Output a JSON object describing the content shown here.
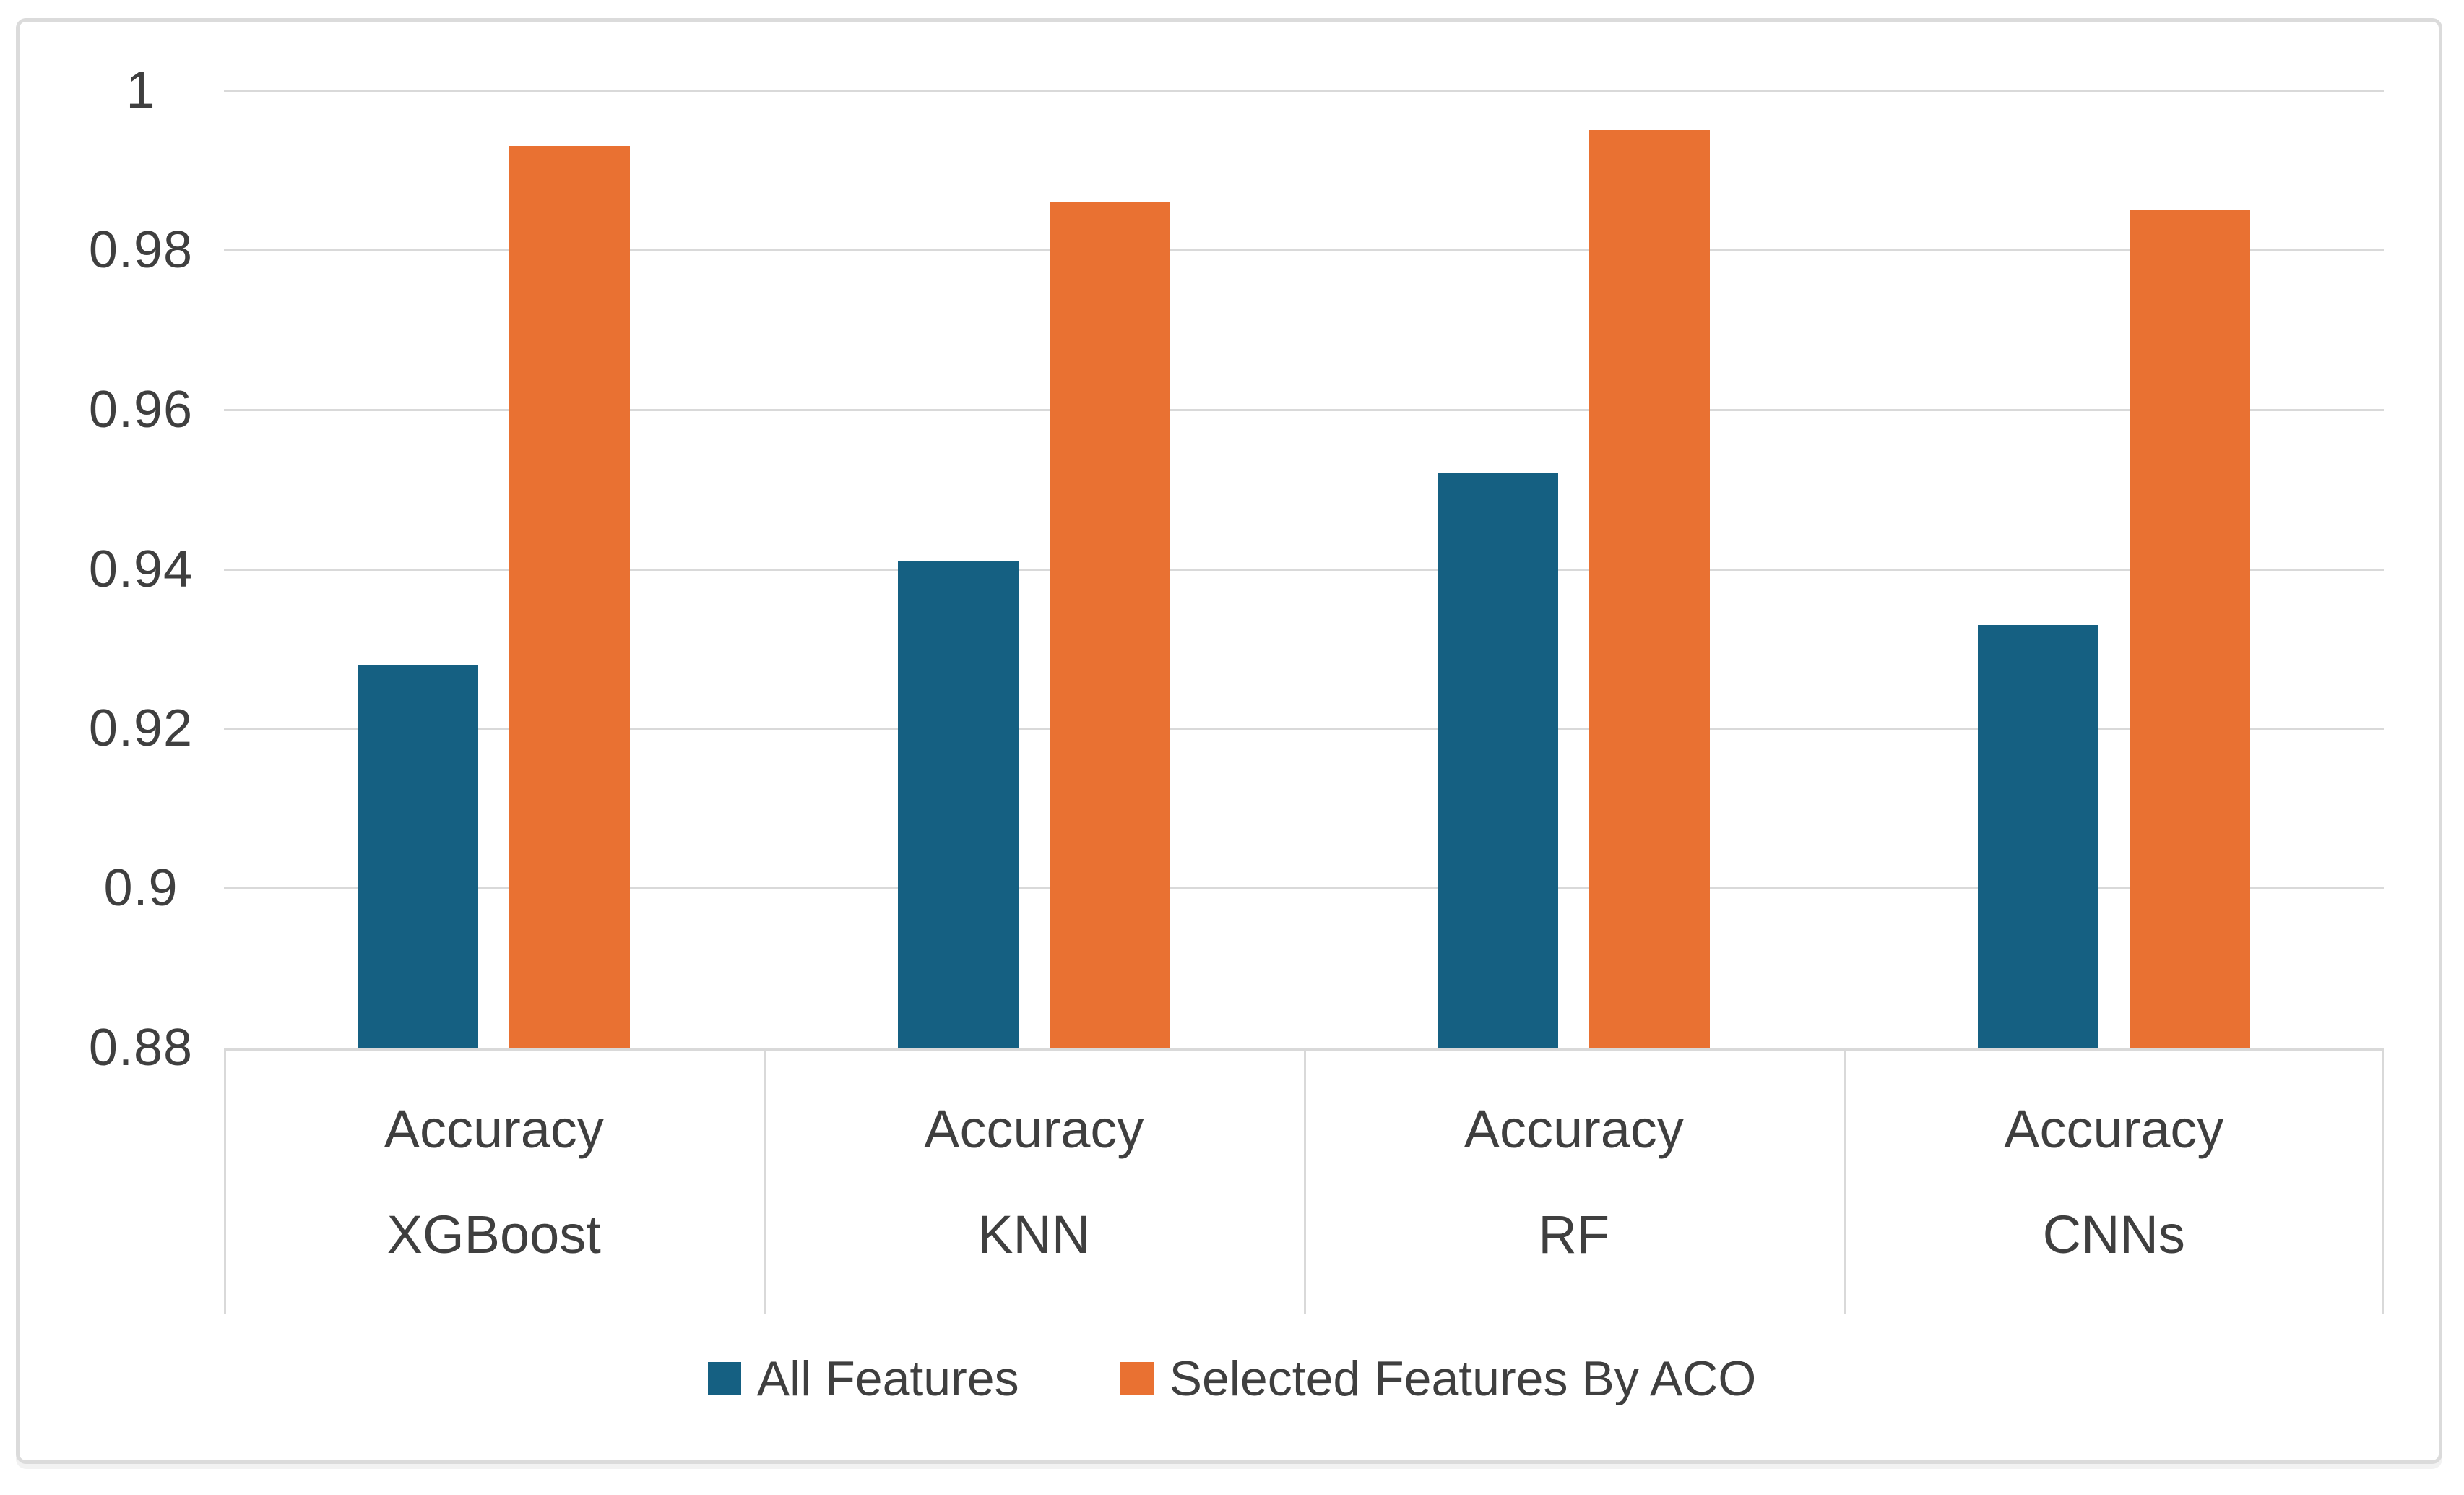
{
  "chart_data": {
    "type": "bar",
    "title": "",
    "xlabel": "",
    "ylabel": "",
    "metric_row_label": "Accuracy",
    "categories": [
      "XGBoost",
      "KNN",
      "RF",
      "CNNs"
    ],
    "series": [
      {
        "name": "All Features",
        "color": "#156082",
        "values": [
          0.928,
          0.941,
          0.952,
          0.933
        ]
      },
      {
        "name": "Selected Features By ACO",
        "color": "#e97132",
        "values": [
          0.993,
          0.986,
          0.995,
          0.985
        ]
      }
    ],
    "ylim": [
      0.88,
      1.0
    ],
    "yticks": [
      {
        "label": "1",
        "value": 1.0
      },
      {
        "label": "0.98",
        "value": 0.98
      },
      {
        "label": "0.96",
        "value": 0.96
      },
      {
        "label": "0.94",
        "value": 0.94
      },
      {
        "label": "0.92",
        "value": 0.92
      },
      {
        "label": "0.9",
        "value": 0.9
      },
      {
        "label": "0.88",
        "value": 0.88
      }
    ],
    "grid": "horizontal",
    "legend_position": "bottom",
    "colors": {
      "gridline": "#d9d9d9",
      "axis_border": "#d9d9d9",
      "text": "#3f3f3f",
      "background": "#ffffff",
      "frame_border": "#dbdbdb"
    }
  }
}
